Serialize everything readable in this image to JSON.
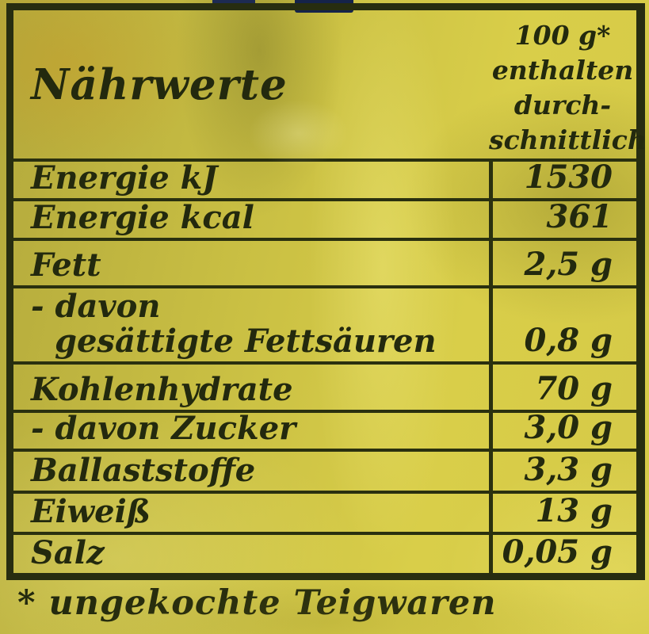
{
  "product_label": {
    "table": {
      "title": "Nährwerte",
      "amount_header_lines": [
        "100 g*",
        "enthalten",
        "durch-",
        "schnittlich"
      ],
      "rows": [
        {
          "label_lines": [
            "Energie kJ"
          ],
          "value": "1530"
        },
        {
          "label_lines": [
            "Energie kcal"
          ],
          "value": "361"
        },
        {
          "label_lines": [
            "Fett"
          ],
          "value": "2,5 g"
        },
        {
          "label_lines": [
            "- davon",
            "gesättigte Fettsäuren"
          ],
          "value": "0,8 g"
        },
        {
          "label_lines": [
            "Kohlenhydrate"
          ],
          "value": "70 g"
        },
        {
          "label_lines": [
            "- davon Zucker"
          ],
          "value": "3,0 g"
        },
        {
          "label_lines": [
            "Ballaststoffe"
          ],
          "value": "3,3 g"
        },
        {
          "label_lines": [
            "Eiweiß"
          ],
          "value": "13 g"
        },
        {
          "label_lines": [
            "Salz"
          ],
          "value": "0,05 g"
        }
      ]
    },
    "footnote": "* ungekochte Teigwaren",
    "colors": {
      "background_yellow": "#cfc445",
      "background_bright": "#ded24b",
      "background_olive": "#b3a93c",
      "ink": "#23290e",
      "rule": "#2a300f",
      "navy_accent": "#1d2b52"
    }
  }
}
